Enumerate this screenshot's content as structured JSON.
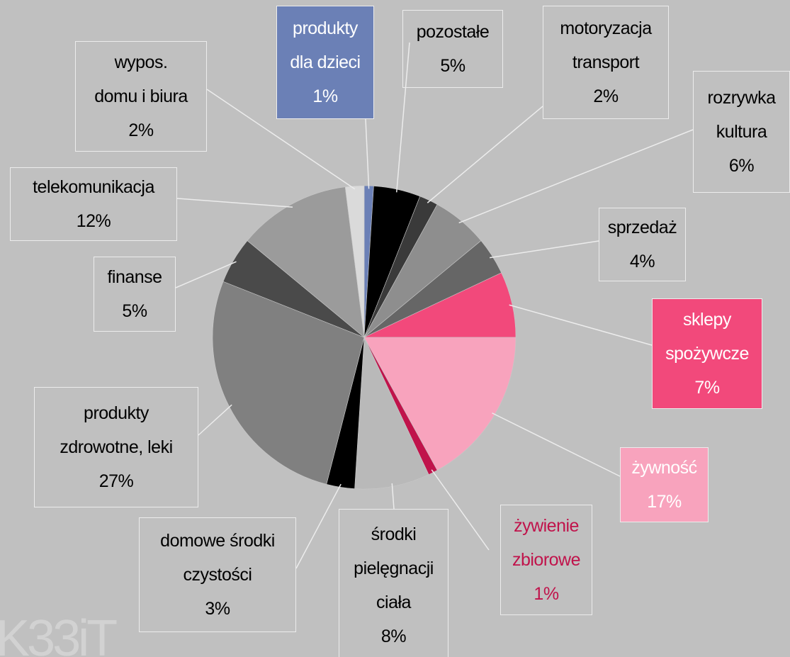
{
  "chart_data": {
    "type": "pie",
    "categories": [
      "produkty\ndla dzieci",
      "pozostałe",
      "motoryzacja\ntransport",
      "rozrywka\nkultura",
      "sprzedaż",
      "sklepy\nspożywcze",
      "żywność",
      "żywienie\nzbiorowe",
      "środki\npielęgnacji\nciała",
      "domowe środki\nczystości",
      "produkty\nzdrowotne, leki",
      "finanse",
      "telekomunikacja",
      "wypos.\ndomu i biura"
    ],
    "values": [
      1,
      5,
      2,
      6,
      4,
      7,
      17,
      1,
      8,
      3,
      27,
      5,
      12,
      2
    ],
    "value_labels": [
      "1%",
      "5%",
      "2%",
      "6%",
      "4%",
      "7%",
      "17%",
      "1%",
      "8%",
      "3%",
      "27%",
      "5%",
      "12%",
      "2%"
    ],
    "colors": [
      "#6b80b6",
      "#000000",
      "#3a3a3a",
      "#8e8e8e",
      "#666666",
      "#f2497b",
      "#f8a3bd",
      "#c0134b",
      "#b9b9b9",
      "#000000",
      "#808080",
      "#4a4a4a",
      "#9b9b9b",
      "#dadada"
    ],
    "label_fills": [
      "#6b80b6",
      null,
      null,
      null,
      null,
      "#f2497b",
      "#f8a3bd",
      null,
      null,
      null,
      null,
      null,
      null,
      null
    ],
    "label_text_colors": [
      "#ffffff",
      "#000000",
      "#000000",
      "#000000",
      "#000000",
      "#ffffff",
      "#ffffff",
      "#c0134b",
      "#000000",
      "#000000",
      "#000000",
      "#000000",
      "#000000",
      "#000000"
    ],
    "watermark": "K33iT"
  }
}
